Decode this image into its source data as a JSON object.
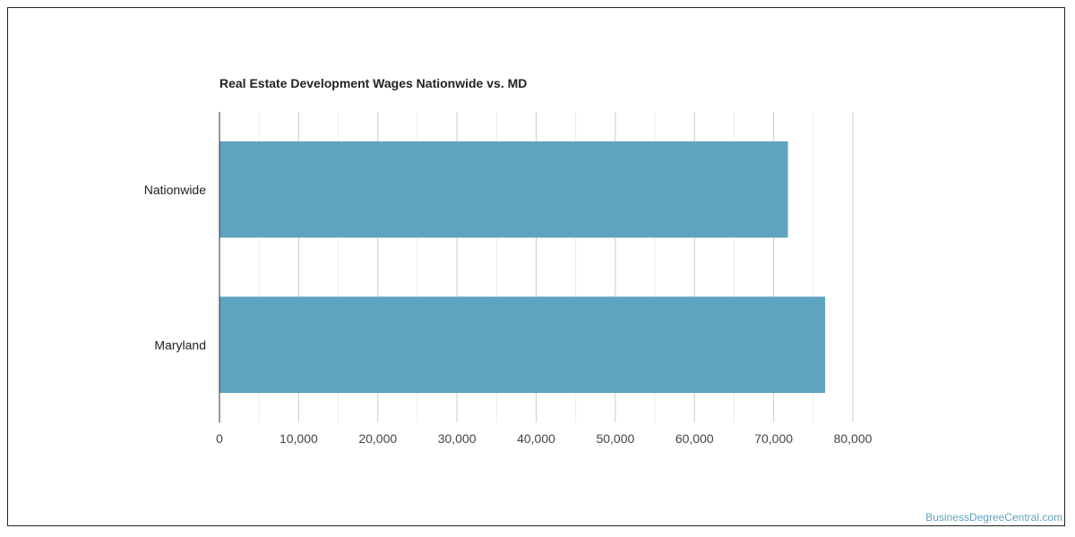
{
  "chart_data": {
    "type": "bar",
    "orientation": "horizontal",
    "title": "Real Estate Development Wages Nationwide vs. MD",
    "categories": [
      "Nationwide",
      "Maryland"
    ],
    "values": [
      71800,
      76500
    ],
    "xlabel": "",
    "ylabel": "",
    "xlim": [
      0,
      80000
    ],
    "x_ticks": [
      0,
      10000,
      20000,
      30000,
      40000,
      50000,
      60000,
      70000,
      80000
    ],
    "x_tick_labels": [
      "0",
      "10,000",
      "20,000",
      "30,000",
      "40,000",
      "50,000",
      "60,000",
      "70,000",
      "80,000"
    ],
    "grid": true,
    "legend": "none",
    "bar_color": "#5ea3bf"
  },
  "watermark": "BusinessDegreeCentral.com"
}
